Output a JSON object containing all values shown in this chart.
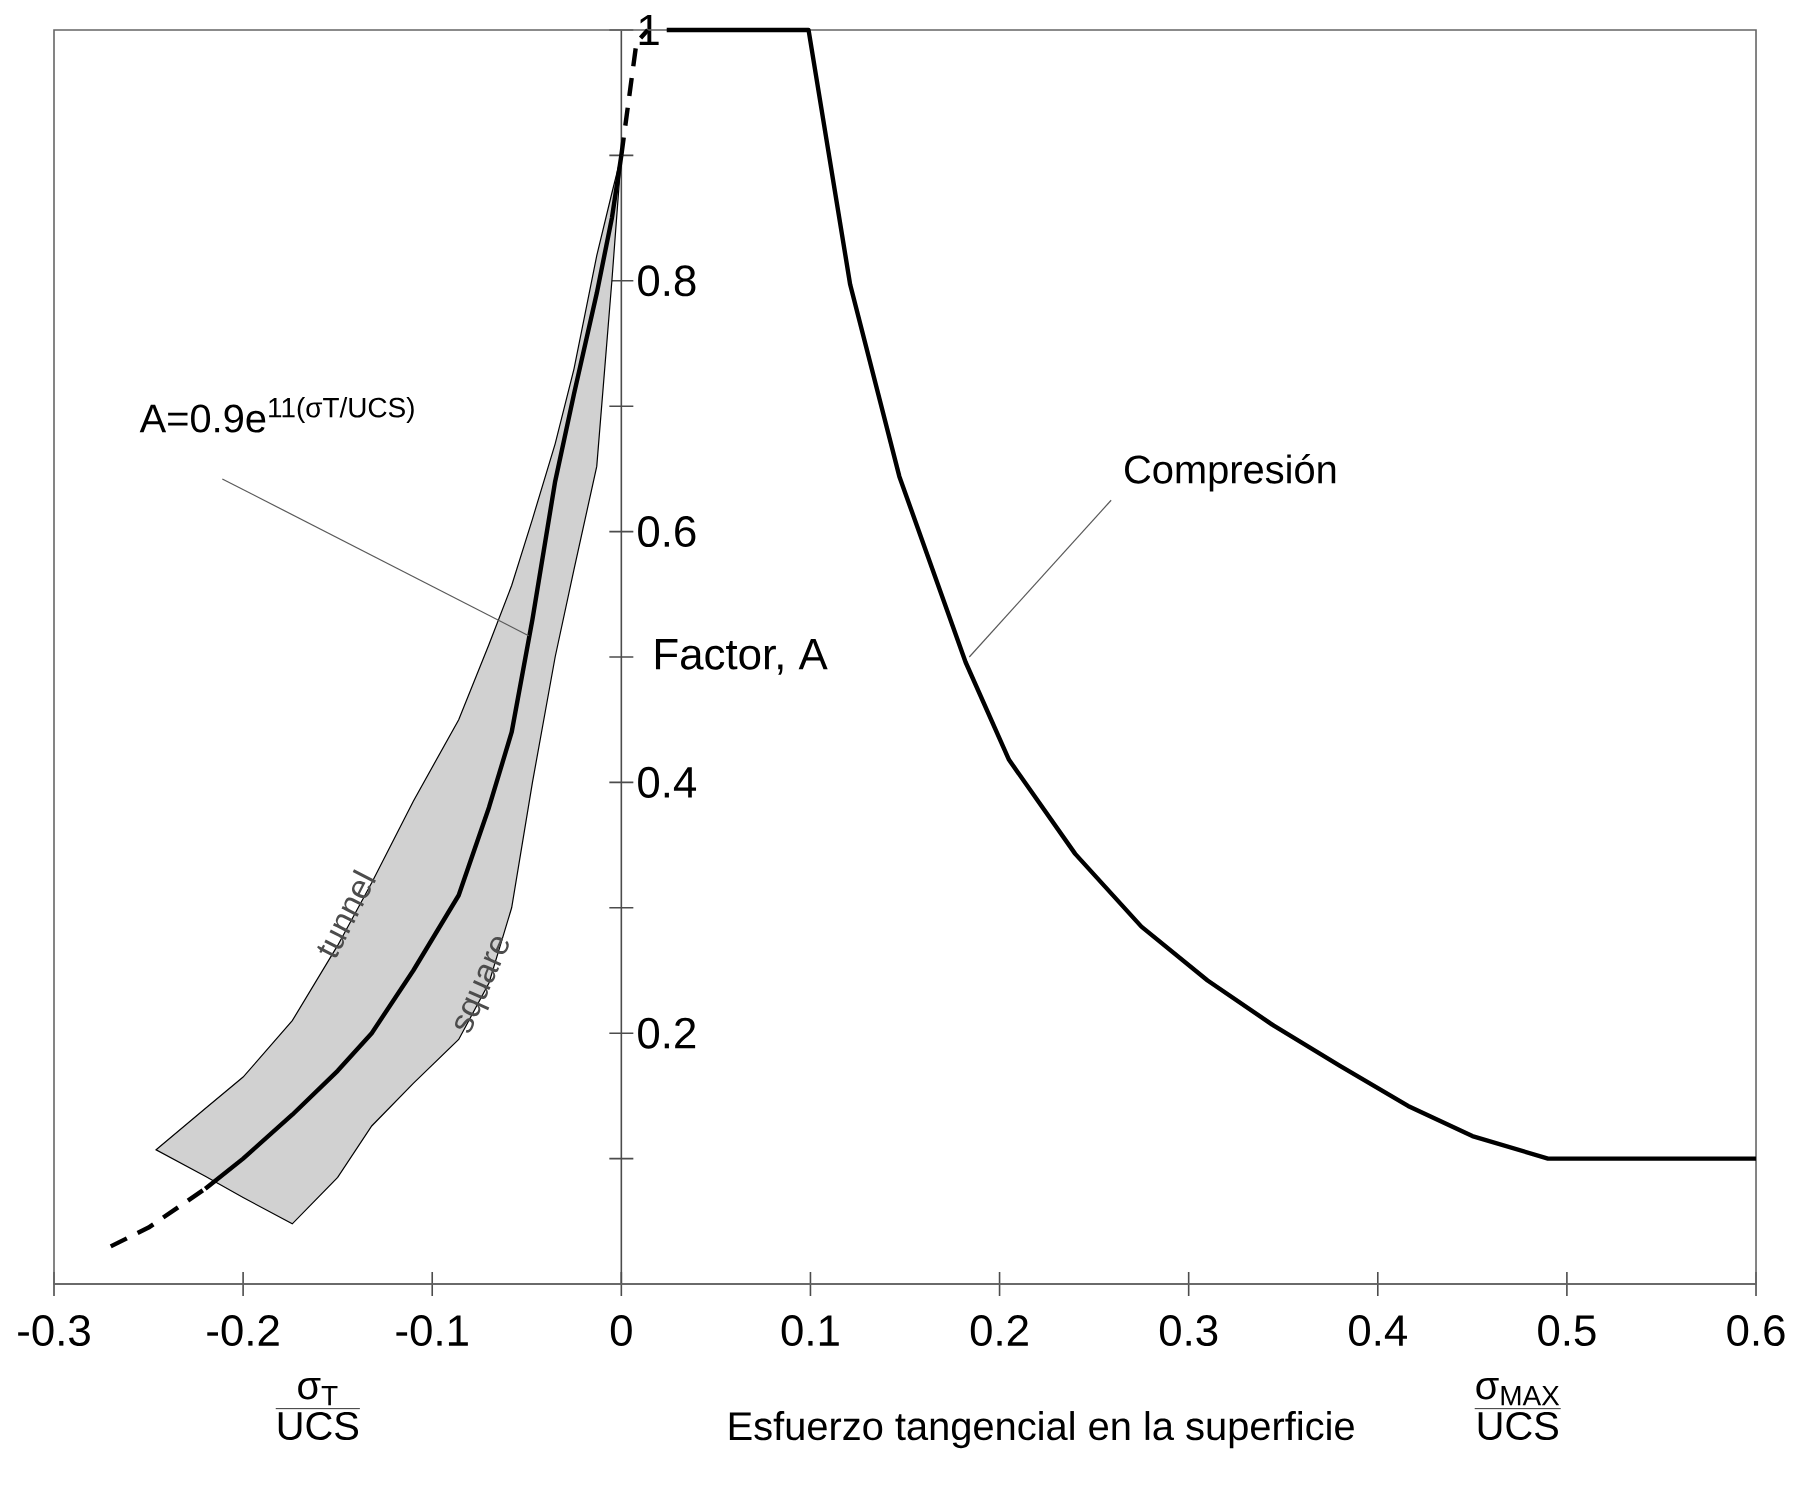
{
  "chart_data": {
    "type": "line",
    "xlabel": "Esfuerzo tangencial en la superficie",
    "ylabel": "Factor, A",
    "xlim": [
      -0.3,
      0.6
    ],
    "ylim": [
      0,
      1
    ],
    "xticks": [
      -0.3,
      -0.2,
      -0.1,
      0,
      0.1,
      0.2,
      0.3,
      0.4,
      0.5,
      0.6
    ],
    "yticks": [
      {
        "value": 0.1,
        "label": null
      },
      0.2,
      {
        "value": 0.3,
        "label": null
      },
      0.4,
      {
        "value": 0.5,
        "label": null
      },
      0.6,
      {
        "value": 0.7,
        "label": null
      },
      0.8,
      {
        "value": 0.9,
        "label": null
      },
      1
    ],
    "grid": false,
    "series": [
      {
        "color": "#000000",
        "line_style": "solid",
        "x": [
          -0.246,
          -0.22,
          -0.2,
          -0.174,
          -0.15,
          -0.132,
          -0.11,
          -0.086,
          -0.07,
          -0.058,
          -0.047,
          -0.035,
          -0.025,
          -0.013,
          -0.005,
          0
        ],
        "values": [
          null,
          0.076,
          0.1,
          0.135,
          0.17,
          0.2,
          0.25,
          0.31,
          0.38,
          0.44,
          0.53,
          0.64,
          0.71,
          0.79,
          0.85,
          0.9
        ],
        "lower": [
          0.107,
          0.086,
          0.069,
          0.048,
          0.085,
          0.126,
          0.16,
          0.195,
          0.24,
          0.3,
          0.4,
          0.5,
          0.57,
          0.652,
          0.8,
          0.9
        ],
        "upper": [
          0.107,
          0.14,
          0.165,
          0.21,
          0.27,
          0.32,
          0.385,
          0.45,
          0.51,
          0.557,
          0.61,
          0.67,
          0.73,
          0.82,
          0.87,
          0.9
        ]
      },
      {
        "color": "#000000",
        "line_style": "dashed",
        "x": [
          -0.27,
          -0.25,
          -0.22
        ],
        "values": [
          0.03,
          0.045,
          0.076
        ]
      },
      {
        "color": "#000000",
        "line_style": "dashed",
        "x": [
          0,
          0.008,
          0.014
        ],
        "values": [
          0.9,
          0.99,
          1
        ]
      },
      {
        "color": "#000000",
        "line_style": "solid",
        "x": [
          0.024,
          0.099,
          0.121,
          0.147,
          0.182,
          0.205,
          0.24,
          0.275,
          0.31,
          0.345,
          0.38,
          0.416,
          0.45,
          0.49,
          0.6
        ],
        "values": [
          1,
          1,
          0.797,
          0.644,
          0.496,
          0.418,
          0.343,
          0.285,
          0.242,
          0.206,
          0.174,
          0.142,
          0.118,
          0.1,
          0.1
        ]
      }
    ],
    "annotations": [
      {
        "text": "A=0.9e$^{11(σT/UCS)}$",
        "x": -0.049,
        "y": 0.517
      },
      {
        "text": "Compresión",
        "x": 0.184,
        "y": 0.5
      },
      {
        "text": "tunnel",
        "x": -0.146,
        "y": 0.295
      },
      {
        "text": "square",
        "x": -0.072,
        "y": 0.238
      },
      "σ$_{T}$",
      "UCS",
      "σ$_{MAX}$",
      "UCS"
    ]
  }
}
